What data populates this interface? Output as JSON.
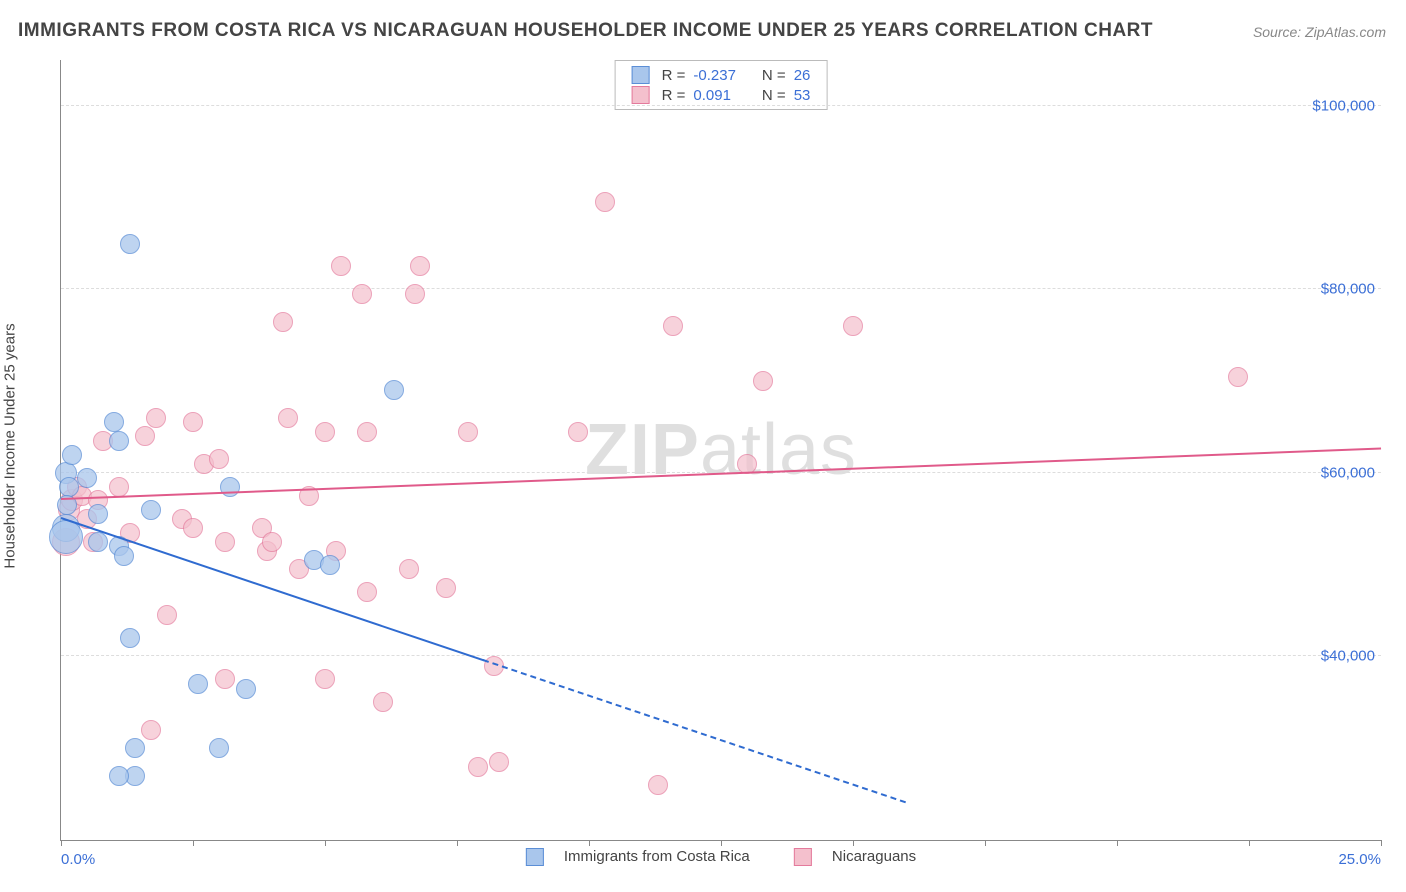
{
  "title": "IMMIGRANTS FROM COSTA RICA VS NICARAGUAN HOUSEHOLDER INCOME UNDER 25 YEARS CORRELATION CHART",
  "source": "Source: ZipAtlas.com",
  "watermark_a": "ZIP",
  "watermark_b": "atlas",
  "yaxis_label": "Householder Income Under 25 years",
  "chart": {
    "type": "scatter",
    "xlim": [
      0,
      25
    ],
    "ylim": [
      20000,
      105000
    ],
    "grid_color": "#dddddd",
    "background_color": "#ffffff",
    "axis_color": "#888888",
    "tick_label_color": "#3b6fd6",
    "y_ticks": [
      {
        "v": 40000,
        "label": "$40,000"
      },
      {
        "v": 60000,
        "label": "$60,000"
      },
      {
        "v": 80000,
        "label": "$80,000"
      },
      {
        "v": 100000,
        "label": "$100,000"
      }
    ],
    "x_minor_tick_step": 2.5,
    "x_labels": [
      {
        "v": 0,
        "label": "0.0%"
      },
      {
        "v": 25,
        "label": "25.0%"
      }
    ],
    "series": [
      {
        "key": "costa_rica",
        "label": "Immigrants from Costa Rica",
        "marker_fill": "#a9c6ec",
        "marker_stroke": "#5b8ed6",
        "marker_opacity": 0.75,
        "marker_radius": 9,
        "trend_color": "#2f6bd0",
        "trend": {
          "x0": 0,
          "y0": 55000,
          "x1": 8,
          "y1": 39500,
          "x_dashed_to": 16,
          "y_dashed_to": 24000
        },
        "R": "-0.237",
        "N": "26",
        "points": [
          {
            "x": 0.1,
            "y": 60000,
            "r": 10
          },
          {
            "x": 0.15,
            "y": 58500,
            "r": 9
          },
          {
            "x": 0.1,
            "y": 54000,
            "r": 13
          },
          {
            "x": 0.1,
            "y": 53000,
            "r": 16
          },
          {
            "x": 0.12,
            "y": 56500,
            "r": 9
          },
          {
            "x": 0.2,
            "y": 62000,
            "r": 9
          },
          {
            "x": 0.5,
            "y": 59500,
            "r": 9
          },
          {
            "x": 0.7,
            "y": 55500,
            "r": 9
          },
          {
            "x": 0.7,
            "y": 52500,
            "r": 9
          },
          {
            "x": 1.0,
            "y": 65500,
            "r": 9
          },
          {
            "x": 1.1,
            "y": 63500,
            "r": 9
          },
          {
            "x": 1.3,
            "y": 85000,
            "r": 9
          },
          {
            "x": 1.1,
            "y": 52000,
            "r": 9
          },
          {
            "x": 1.2,
            "y": 51000,
            "r": 9
          },
          {
            "x": 1.3,
            "y": 42000,
            "r": 9
          },
          {
            "x": 1.4,
            "y": 30000,
            "r": 9
          },
          {
            "x": 1.4,
            "y": 27000,
            "r": 9
          },
          {
            "x": 1.1,
            "y": 27000,
            "r": 9
          },
          {
            "x": 2.6,
            "y": 37000,
            "r": 9
          },
          {
            "x": 3.0,
            "y": 30000,
            "r": 9
          },
          {
            "x": 3.2,
            "y": 58500,
            "r": 9
          },
          {
            "x": 3.5,
            "y": 36500,
            "r": 9
          },
          {
            "x": 4.8,
            "y": 50500,
            "r": 9
          },
          {
            "x": 5.1,
            "y": 50000,
            "r": 9
          },
          {
            "x": 6.3,
            "y": 69000,
            "r": 9
          },
          {
            "x": 1.7,
            "y": 56000,
            "r": 9
          }
        ]
      },
      {
        "key": "nicaraguans",
        "label": "Nicaraguans",
        "marker_fill": "#f4c0cd",
        "marker_stroke": "#e47a9c",
        "marker_opacity": 0.7,
        "marker_radius": 9,
        "trend_color": "#e05a8a",
        "trend": {
          "x0": 0,
          "y0": 57000,
          "x1": 25,
          "y1": 62500
        },
        "R": "0.091",
        "N": "53",
        "points": [
          {
            "x": 0.1,
            "y": 52500,
            "r": 13
          },
          {
            "x": 0.15,
            "y": 56000,
            "r": 10
          },
          {
            "x": 0.2,
            "y": 57000,
            "r": 10
          },
          {
            "x": 0.3,
            "y": 58500,
            "r": 9
          },
          {
            "x": 0.4,
            "y": 57500,
            "r": 9
          },
          {
            "x": 0.6,
            "y": 52500,
            "r": 9
          },
          {
            "x": 0.7,
            "y": 57000,
            "r": 9
          },
          {
            "x": 0.8,
            "y": 63500,
            "r": 9
          },
          {
            "x": 1.1,
            "y": 58500,
            "r": 9
          },
          {
            "x": 1.3,
            "y": 53500,
            "r": 9
          },
          {
            "x": 1.6,
            "y": 64000,
            "r": 9
          },
          {
            "x": 1.8,
            "y": 66000,
            "r": 9
          },
          {
            "x": 1.7,
            "y": 32000,
            "r": 9
          },
          {
            "x": 2.0,
            "y": 44500,
            "r": 9
          },
          {
            "x": 2.3,
            "y": 55000,
            "r": 9
          },
          {
            "x": 2.5,
            "y": 54000,
            "r": 9
          },
          {
            "x": 2.5,
            "y": 65500,
            "r": 9
          },
          {
            "x": 2.7,
            "y": 61000,
            "r": 9
          },
          {
            "x": 3.0,
            "y": 61500,
            "r": 9
          },
          {
            "x": 3.1,
            "y": 52500,
            "r": 9
          },
          {
            "x": 3.1,
            "y": 37500,
            "r": 9
          },
          {
            "x": 3.8,
            "y": 54000,
            "r": 9
          },
          {
            "x": 3.9,
            "y": 51500,
            "r": 9
          },
          {
            "x": 4.2,
            "y": 76500,
            "r": 9
          },
          {
            "x": 4.3,
            "y": 66000,
            "r": 9
          },
          {
            "x": 4.0,
            "y": 52500,
            "r": 9
          },
          {
            "x": 4.5,
            "y": 49500,
            "r": 9
          },
          {
            "x": 4.7,
            "y": 57500,
            "r": 9
          },
          {
            "x": 5.0,
            "y": 64500,
            "r": 9
          },
          {
            "x": 5.0,
            "y": 37500,
            "r": 9
          },
          {
            "x": 5.3,
            "y": 82500,
            "r": 9
          },
          {
            "x": 5.2,
            "y": 51500,
            "r": 9
          },
          {
            "x": 5.7,
            "y": 79500,
            "r": 9
          },
          {
            "x": 5.8,
            "y": 64500,
            "r": 9
          },
          {
            "x": 5.8,
            "y": 47000,
            "r": 9
          },
          {
            "x": 6.1,
            "y": 35000,
            "r": 9
          },
          {
            "x": 6.6,
            "y": 49500,
            "r": 9
          },
          {
            "x": 6.7,
            "y": 79500,
            "r": 9
          },
          {
            "x": 6.8,
            "y": 82500,
            "r": 9
          },
          {
            "x": 7.3,
            "y": 47500,
            "r": 9
          },
          {
            "x": 7.7,
            "y": 64500,
            "r": 9
          },
          {
            "x": 7.9,
            "y": 28000,
            "r": 9
          },
          {
            "x": 8.2,
            "y": 39000,
            "r": 9
          },
          {
            "x": 8.3,
            "y": 28500,
            "r": 9
          },
          {
            "x": 9.8,
            "y": 64500,
            "r": 9
          },
          {
            "x": 10.3,
            "y": 89500,
            "r": 9
          },
          {
            "x": 11.3,
            "y": 26000,
            "r": 9
          },
          {
            "x": 11.6,
            "y": 76000,
            "r": 9
          },
          {
            "x": 13.0,
            "y": 61000,
            "r": 9
          },
          {
            "x": 13.3,
            "y": 70000,
            "r": 9
          },
          {
            "x": 15.0,
            "y": 76000,
            "r": 9
          },
          {
            "x": 22.3,
            "y": 70500,
            "r": 9
          },
          {
            "x": 0.5,
            "y": 55000,
            "r": 9
          }
        ]
      }
    ]
  },
  "stats_labels": {
    "R": "R =",
    "N": "N ="
  }
}
